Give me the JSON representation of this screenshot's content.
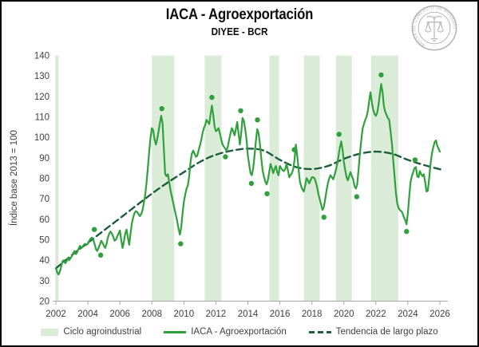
{
  "header": {
    "title": "IACA - Agroexportación",
    "subtitle": "DIYEE - BCR"
  },
  "logo": {
    "text": "BOLSA DE COMERCIO DE ROSARIO",
    "color": "#b3b3b3"
  },
  "chart_data": {
    "type": "line",
    "title": "IACA - Agroexportación",
    "subtitle": "DIYEE - BCR",
    "xlabel": "",
    "ylabel": "Índice base 2013 = 100",
    "xlim": [
      2002,
      2026.5
    ],
    "ylim": [
      20,
      140
    ],
    "grid": false,
    "legend_position": "bottom",
    "x_ticks": [
      2002,
      2004,
      2006,
      2008,
      2010,
      2012,
      2014,
      2016,
      2018,
      2020,
      2022,
      2024,
      2026
    ],
    "y_ticks": [
      20,
      30,
      40,
      50,
      60,
      70,
      80,
      90,
      100,
      110,
      120,
      130,
      140
    ],
    "legend": [
      "Ciclo agroindustrial",
      "IACA - Agroexportación",
      "Tendencia de largo plazo"
    ],
    "bands": {
      "label": "Ciclo agroindustrial",
      "color": "#daecd8",
      "intervals": [
        [
          2002.0,
          2002.17
        ],
        [
          2008.0,
          2009.4
        ],
        [
          2011.3,
          2012.35
        ],
        [
          2015.35,
          2015.95
        ],
        [
          2017.5,
          2018.5
        ],
        [
          2019.5,
          2020.5
        ],
        [
          2021.7,
          2023.4
        ]
      ]
    },
    "series": [
      {
        "name": "IACA - Agroexportación",
        "type": "line",
        "color": "#2fa03c",
        "start_year": 2002,
        "frequency": "monthly",
        "monthly_values": [
          36,
          34,
          33,
          34.5,
          37,
          39.5,
          40,
          38.5,
          39.5,
          41,
          40,
          41,
          42,
          43.5,
          44.5,
          43,
          44,
          45.5,
          47,
          46,
          46.5,
          47.5,
          48,
          47.5,
          48,
          49.5,
          50.5,
          51,
          50,
          48,
          45.5,
          44.5,
          46,
          47.5,
          49.5,
          48.5,
          47,
          46,
          48,
          51,
          53,
          54,
          53,
          51.5,
          49.5,
          50,
          51.5,
          53,
          54.5,
          50,
          46,
          49,
          53,
          55,
          51,
          47.5,
          53,
          58,
          61,
          63,
          64,
          63.5,
          62.5,
          61.5,
          62.5,
          64.5,
          68,
          72,
          78,
          85,
          93,
          100,
          104.5,
          103.5,
          99,
          96.5,
          99,
          103,
          107,
          110.5,
          107,
          94,
          82,
          81,
          82,
          78,
          74,
          71,
          68,
          65,
          62,
          59,
          55.5,
          52.5,
          56,
          63,
          68.5,
          72,
          75,
          76.5,
          81,
          88,
          92,
          93.5,
          92,
          90.5,
          91,
          93.5,
          96,
          98.5,
          102,
          104.5,
          106,
          108.5,
          107.5,
          106.5,
          111,
          115.5,
          111,
          105.5,
          103,
          103.5,
          104.5,
          102,
          99,
          96.5,
          95.5,
          94.5,
          93.5,
          95.5,
          99,
          102,
          104.5,
          103,
          101,
          104,
          107.5,
          102,
          96.5,
          102,
          109.5,
          108,
          104,
          99,
          91,
          86.5,
          82.5,
          81.5,
          85,
          91,
          98,
          104,
          102,
          97,
          90,
          84,
          81,
          78.5,
          77,
          79,
          83,
          87,
          85,
          82.5,
          84.5,
          86,
          83,
          81.5,
          86,
          85,
          84,
          83.5,
          84.5,
          87,
          84,
          80.5,
          81.5,
          82.5,
          84.5,
          89,
          96.5,
          91,
          84.5,
          78.5,
          76,
          74.5,
          73.5,
          76.5,
          80,
          79,
          77.5,
          79,
          80.5,
          80.5,
          80,
          78,
          75.5,
          72,
          69.5,
          67,
          64.5,
          66,
          70,
          74,
          77.5,
          80,
          81.5,
          80.5,
          79.5,
          81.5,
          84,
          87,
          91,
          95,
          98,
          94,
          88,
          84,
          80.5,
          79,
          81,
          83,
          81,
          79.5,
          76,
          75,
          77,
          84,
          92,
          98,
          104,
          106.5,
          108.5,
          110,
          113,
          118,
          122,
          117,
          113.5,
          111.5,
          110.5,
          112,
          116,
          121,
          126,
          122,
          115.5,
          112.5,
          111,
          109.5,
          108.5,
          103,
          97,
          89,
          81,
          73,
          68,
          65.5,
          64.5,
          64,
          63,
          61,
          59.5,
          57.5,
          63,
          71,
          78,
          81,
          83,
          85,
          85.5,
          81,
          80.5,
          83.5,
          82,
          81,
          82,
          78,
          73.5,
          74,
          80,
          87,
          92,
          95,
          97.5,
          98.5,
          96,
          94.5,
          93
        ]
      },
      {
        "name": "Tendencia de largo plazo",
        "type": "dashed-line",
        "color": "#1d5c3f",
        "points": [
          [
            2002,
            36
          ],
          [
            2003,
            42.5
          ],
          [
            2004,
            48.5
          ],
          [
            2005,
            54.5
          ],
          [
            2006,
            60.5
          ],
          [
            2007,
            66.5
          ],
          [
            2008,
            72.5
          ],
          [
            2009,
            78
          ],
          [
            2010,
            83
          ],
          [
            2011,
            88
          ],
          [
            2012,
            91.5
          ],
          [
            2013,
            93.5
          ],
          [
            2014,
            94.5
          ],
          [
            2015,
            93.5
          ],
          [
            2016,
            89
          ],
          [
            2017,
            85.5
          ],
          [
            2018,
            84.5
          ],
          [
            2019,
            86
          ],
          [
            2020,
            89.5
          ],
          [
            2021,
            92
          ],
          [
            2022,
            93
          ],
          [
            2023,
            92
          ],
          [
            2024,
            89
          ],
          [
            2025,
            86.5
          ],
          [
            2026.2,
            84
          ]
        ]
      }
    ],
    "turning_points": [
      [
        2004.4,
        55
      ],
      [
        2004.8,
        42.5
      ],
      [
        2008.62,
        114
      ],
      [
        2009.8,
        48
      ],
      [
        2011.75,
        119.5
      ],
      [
        2012.6,
        90.5
      ],
      [
        2013.55,
        113
      ],
      [
        2014.22,
        77.5
      ],
      [
        2014.6,
        108.5
      ],
      [
        2015.2,
        72.5
      ],
      [
        2016.9,
        94
      ],
      [
        2018.75,
        61
      ],
      [
        2019.7,
        101.5
      ],
      [
        2020.8,
        71
      ],
      [
        2022.33,
        130.5
      ],
      [
        2023.92,
        54
      ],
      [
        2024.45,
        89
      ]
    ]
  }
}
